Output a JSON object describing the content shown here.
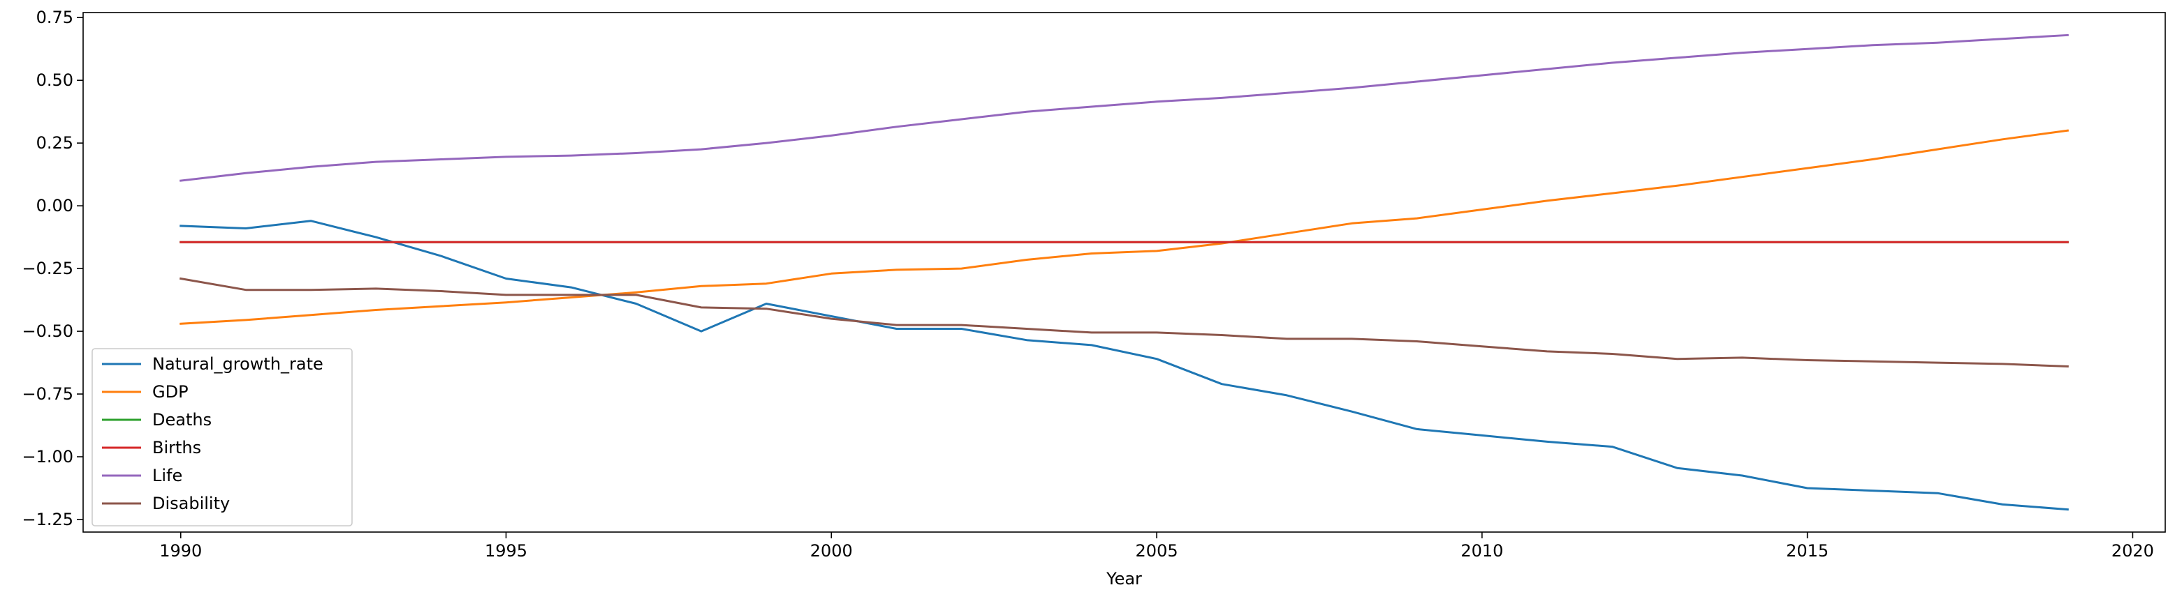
{
  "chart_data": {
    "type": "line",
    "title": "",
    "xlabel": "Year",
    "ylabel": "",
    "xlim": [
      1988.5,
      2020.5
    ],
    "ylim": [
      -1.3,
      0.77
    ],
    "x_ticks": [
      1990,
      1995,
      2000,
      2005,
      2010,
      2015,
      2020
    ],
    "x_tick_labels": [
      "1990",
      "1995",
      "2000",
      "2005",
      "2010",
      "2015",
      "2020"
    ],
    "y_ticks": [
      0.75,
      0.5,
      0.25,
      0.0,
      -0.25,
      -0.5,
      -0.75,
      -1.0,
      -1.25
    ],
    "y_tick_labels": [
      "0.75",
      "0.50",
      "0.25",
      "0.00",
      "−0.25",
      "−0.50",
      "−0.75",
      "−1.00",
      "−1.25"
    ],
    "grid": false,
    "legend_position": "lower-left",
    "x": [
      1990,
      1991,
      1992,
      1993,
      1994,
      1995,
      1996,
      1997,
      1998,
      1999,
      2000,
      2001,
      2002,
      2003,
      2004,
      2005,
      2006,
      2007,
      2008,
      2009,
      2010,
      2011,
      2012,
      2013,
      2014,
      2015,
      2016,
      2017,
      2018,
      2019
    ],
    "series": [
      {
        "name": "Natural_growth_rate",
        "color": "#1f77b4",
        "values": [
          -0.08,
          -0.09,
          -0.06,
          -0.125,
          -0.2,
          -0.29,
          -0.325,
          -0.39,
          -0.5,
          -0.39,
          -0.44,
          -0.49,
          -0.49,
          -0.535,
          -0.555,
          -0.61,
          -0.71,
          -0.755,
          -0.82,
          -0.89,
          -0.915,
          -0.94,
          -0.96,
          -1.045,
          -1.075,
          -1.125,
          -1.135,
          -1.145,
          -1.19,
          -1.21
        ]
      },
      {
        "name": "GDP",
        "color": "#ff7f0e",
        "values": [
          -0.47,
          -0.455,
          -0.435,
          -0.415,
          -0.4,
          -0.385,
          -0.365,
          -0.345,
          -0.32,
          -0.31,
          -0.27,
          -0.255,
          -0.25,
          -0.215,
          -0.19,
          -0.18,
          -0.15,
          -0.11,
          -0.07,
          -0.05,
          -0.015,
          0.02,
          0.05,
          0.08,
          0.115,
          0.15,
          0.185,
          0.225,
          0.265,
          0.3
        ]
      },
      {
        "name": "Deaths",
        "color": "#2ca02c",
        "values": [
          -0.145,
          -0.145,
          -0.145,
          -0.145,
          -0.145,
          -0.145,
          -0.145,
          -0.145,
          -0.145,
          -0.145,
          -0.145,
          -0.145,
          -0.145,
          -0.145,
          -0.145,
          -0.145,
          -0.145,
          -0.145,
          -0.145,
          -0.145,
          -0.145,
          -0.145,
          -0.145,
          -0.145,
          -0.145,
          -0.145,
          -0.145,
          -0.145,
          -0.145,
          -0.145
        ]
      },
      {
        "name": "Births",
        "color": "#d62728",
        "values": [
          -0.145,
          -0.145,
          -0.145,
          -0.145,
          -0.145,
          -0.145,
          -0.145,
          -0.145,
          -0.145,
          -0.145,
          -0.145,
          -0.145,
          -0.145,
          -0.145,
          -0.145,
          -0.145,
          -0.145,
          -0.145,
          -0.145,
          -0.145,
          -0.145,
          -0.145,
          -0.145,
          -0.145,
          -0.145,
          -0.145,
          -0.145,
          -0.145,
          -0.145,
          -0.145
        ]
      },
      {
        "name": "Life",
        "color": "#9467bd",
        "values": [
          0.1,
          0.13,
          0.155,
          0.175,
          0.185,
          0.195,
          0.2,
          0.21,
          0.225,
          0.25,
          0.28,
          0.315,
          0.345,
          0.375,
          0.395,
          0.415,
          0.43,
          0.45,
          0.47,
          0.495,
          0.52,
          0.545,
          0.57,
          0.59,
          0.61,
          0.625,
          0.64,
          0.65,
          0.665,
          0.68
        ]
      },
      {
        "name": "Disability",
        "color": "#8c564b",
        "values": [
          -0.29,
          -0.335,
          -0.335,
          -0.33,
          -0.34,
          -0.355,
          -0.355,
          -0.355,
          -0.405,
          -0.41,
          -0.45,
          -0.475,
          -0.475,
          -0.49,
          -0.505,
          -0.505,
          -0.515,
          -0.53,
          -0.53,
          -0.54,
          -0.56,
          -0.58,
          -0.59,
          -0.61,
          -0.605,
          -0.615,
          -0.62,
          -0.625,
          -0.63,
          -0.64
        ]
      }
    ]
  }
}
